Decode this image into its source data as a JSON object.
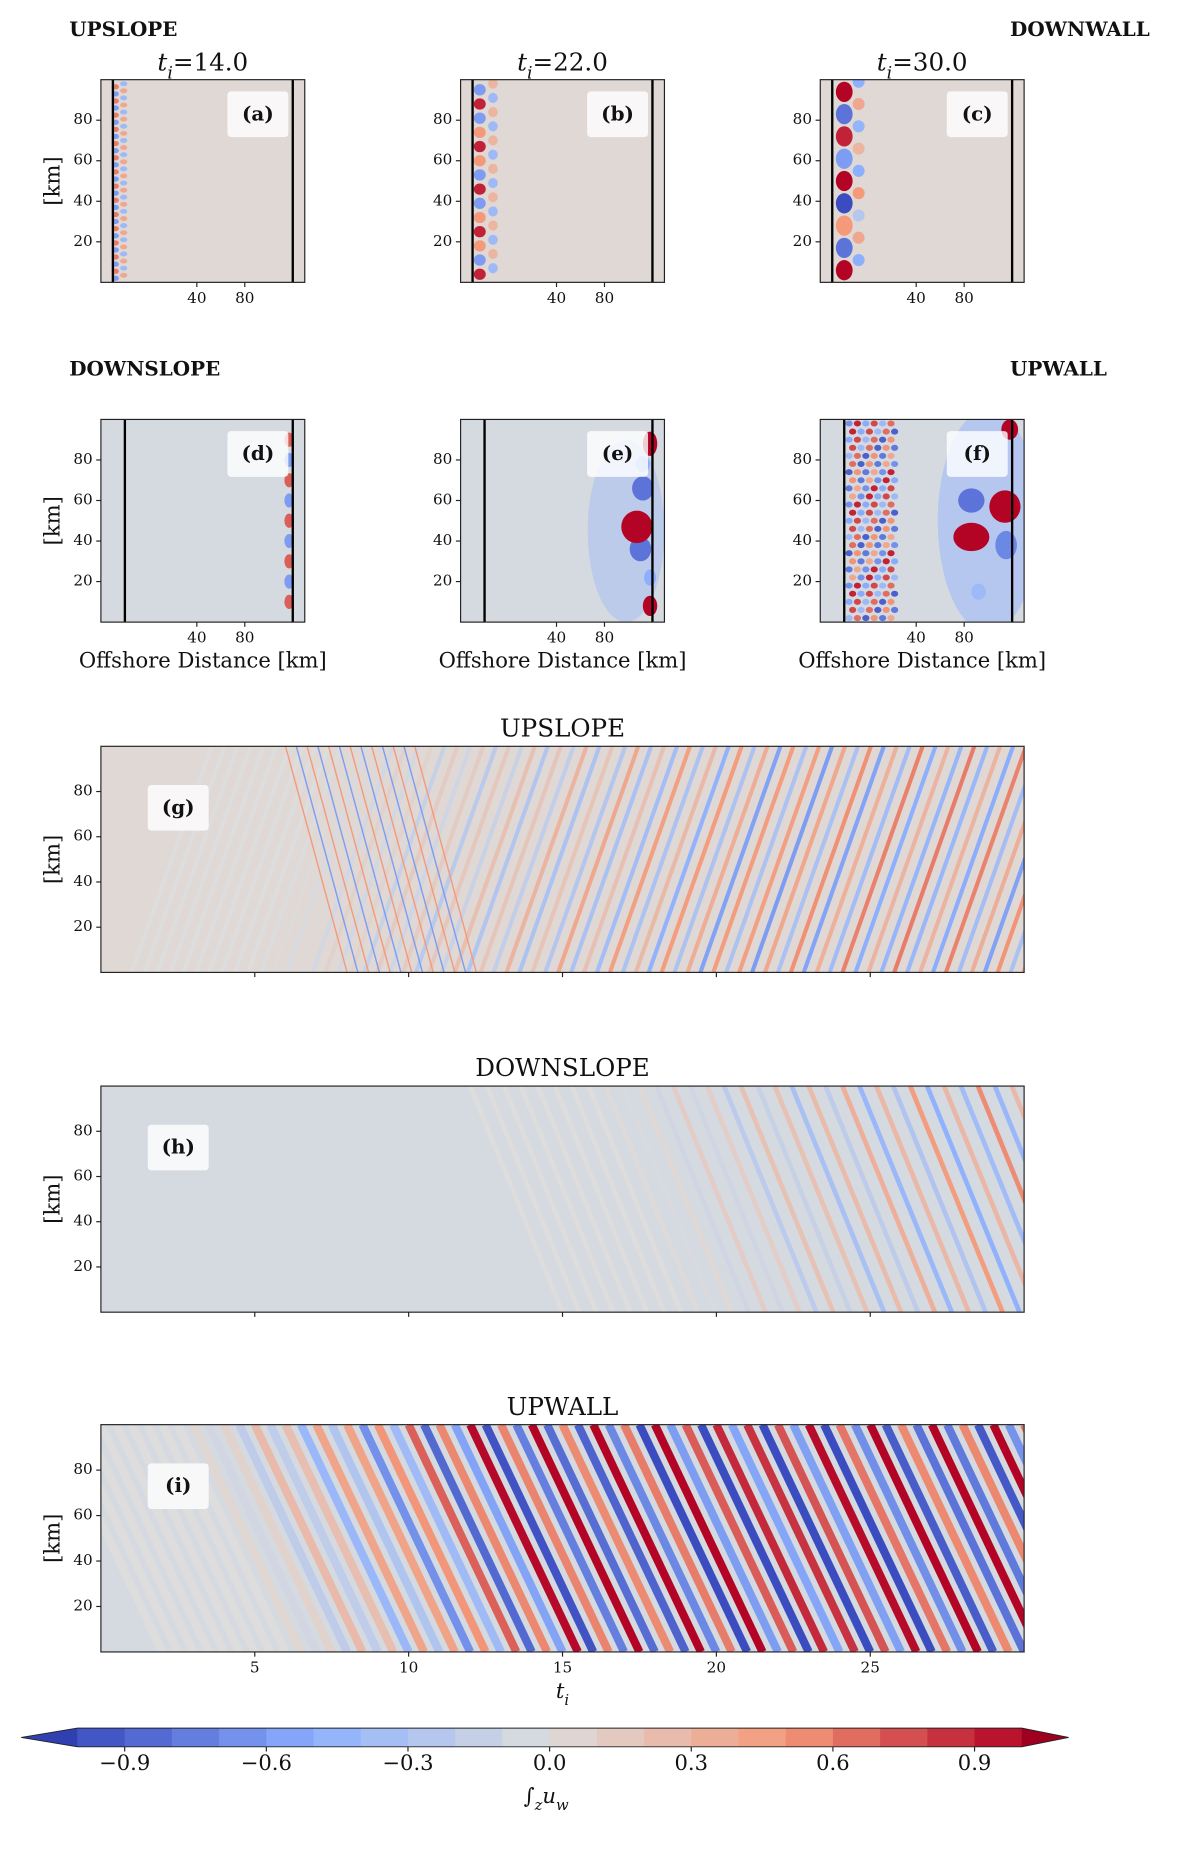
{
  "figure_labels": [
    "UPSLOPE",
    "DOWNWALL",
    "DOWNSLOPE",
    "UPWALL"
  ],
  "chart_data": [
    {
      "type": "heatmap",
      "panel_label": "(a)",
      "title": {
        "var": "t",
        "sub": "i",
        "text": "=14.0"
      },
      "xlim": [
        -40,
        130
      ],
      "ylim": [
        0,
        100
      ],
      "xticks": [
        40,
        80
      ],
      "yticks": [
        20,
        40,
        60,
        80
      ],
      "ylabel": "[km]",
      "vlines": [
        -30,
        120
      ]
    },
    {
      "type": "heatmap",
      "panel_label": "(b)",
      "title": {
        "var": "t",
        "sub": "i",
        "text": "=22.0"
      },
      "xlim": [
        -40,
        130
      ],
      "ylim": [
        0,
        100
      ],
      "xticks": [
        40,
        80
      ],
      "yticks": [
        20,
        40,
        60,
        80
      ],
      "vlines": [
        -30,
        120
      ]
    },
    {
      "type": "heatmap",
      "panel_label": "(c)",
      "title": {
        "var": "t",
        "sub": "i",
        "text": "=30.0"
      },
      "xlim": [
        -40,
        130
      ],
      "ylim": [
        0,
        100
      ],
      "xticks": [
        40,
        80
      ],
      "yticks": [
        20,
        40,
        60,
        80
      ],
      "vlines": [
        -30,
        120
      ]
    },
    {
      "type": "heatmap",
      "panel_label": "(d)",
      "xlim": [
        -40,
        130
      ],
      "ylim": [
        0,
        100
      ],
      "xticks": [
        40,
        80
      ],
      "yticks": [
        20,
        40,
        60,
        80
      ],
      "ylabel": "[km]",
      "xlabel": "Offshore Distance [km]",
      "vlines": [
        -20,
        120
      ]
    },
    {
      "type": "heatmap",
      "panel_label": "(e)",
      "xlim": [
        -40,
        130
      ],
      "ylim": [
        0,
        100
      ],
      "xticks": [
        40,
        80
      ],
      "yticks": [
        20,
        40,
        60,
        80
      ],
      "xlabel": "Offshore Distance [km]",
      "vlines": [
        -20,
        120
      ]
    },
    {
      "type": "heatmap",
      "panel_label": "(f)",
      "xlim": [
        -40,
        130
      ],
      "ylim": [
        0,
        100
      ],
      "xticks": [
        40,
        80
      ],
      "yticks": [
        20,
        40,
        60,
        80
      ],
      "xlabel": "Offshore Distance [km]",
      "vlines": [
        -20,
        120
      ]
    },
    {
      "type": "heatmap",
      "panel_label": "(g)",
      "title": "UPSLOPE",
      "xlim": [
        0,
        30
      ],
      "ylim": [
        0,
        100
      ],
      "xticks": [
        5,
        10,
        15,
        20,
        25
      ],
      "show_xtick_labels": false,
      "yticks": [
        20,
        40,
        60,
        80
      ],
      "ylabel": "[km]"
    },
    {
      "type": "heatmap",
      "panel_label": "(h)",
      "title": "DOWNSLOPE",
      "xlim": [
        0,
        30
      ],
      "ylim": [
        0,
        100
      ],
      "xticks": [
        5,
        10,
        15,
        20,
        25
      ],
      "show_xtick_labels": false,
      "yticks": [
        20,
        40,
        60,
        80
      ],
      "ylabel": "[km]"
    },
    {
      "type": "heatmap",
      "panel_label": "(i)",
      "title": "UPWALL",
      "xlim": [
        0,
        30
      ],
      "ylim": [
        0,
        100
      ],
      "xticks": [
        5,
        10,
        15,
        20,
        25
      ],
      "show_xtick_labels": true,
      "yticks": [
        20,
        40,
        60,
        80
      ],
      "ylabel": "[km]",
      "xlabel": {
        "var": "t",
        "sub": "i"
      }
    }
  ],
  "colorbar": {
    "cmap": "coolwarm",
    "clim": [
      -1,
      1
    ],
    "n_levels": 20,
    "extend": "both",
    "ticks": [
      {
        "value": -0.9,
        "label": "−0.9"
      },
      {
        "value": -0.6,
        "label": "−0.6"
      },
      {
        "value": -0.3,
        "label": "−0.3"
      },
      {
        "value": 0,
        "label": "0.0"
      },
      0.3,
      0.6,
      0.9
    ],
    "label": {
      "symbol": "∫",
      "sub": "z",
      "var": "u",
      "var_sub": "w"
    }
  }
}
